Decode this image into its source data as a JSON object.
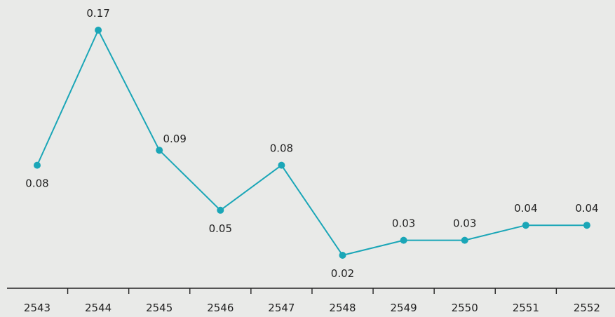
{
  "colors": {
    "background": "#e9eae8",
    "series": "#1aa6b7",
    "axis": "#222222",
    "text": "#222222"
  },
  "chart_data": {
    "type": "line",
    "title": "",
    "xlabel": "",
    "ylabel": "",
    "categories": [
      "2543",
      "2544",
      "2545",
      "2546",
      "2547",
      "2548",
      "2549",
      "2550",
      "2551",
      "2552"
    ],
    "series": [
      {
        "values": [
          0.08,
          0.17,
          0.09,
          0.05,
          0.08,
          0.02,
          0.03,
          0.03,
          0.04,
          0.04
        ],
        "labels": [
          "0.08",
          "0.17",
          "0.09",
          "0.05",
          "0.08",
          "0.02",
          "0.03",
          "0.03",
          "0.04",
          "0.04"
        ]
      }
    ],
    "label_positions": [
      "below",
      "above",
      "above-right",
      "below",
      "above",
      "below",
      "above",
      "above",
      "above",
      "above"
    ],
    "ylim": [
      0,
      0.17
    ],
    "grid": false,
    "legend": "none",
    "y_axis_visible": false
  }
}
